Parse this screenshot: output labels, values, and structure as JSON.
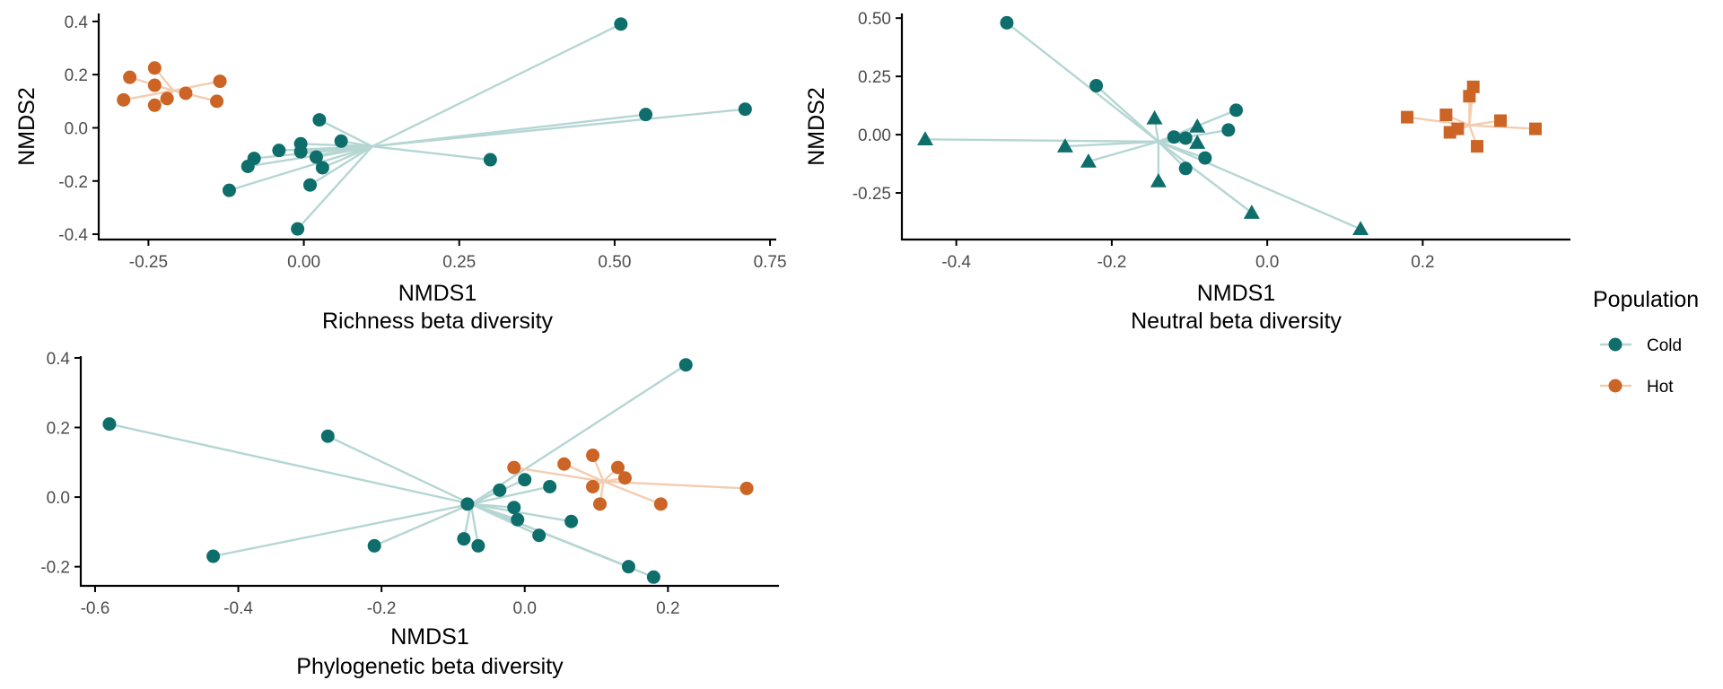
{
  "colors": {
    "Cold": "#0e6e6c",
    "Hot": "#cb6424",
    "Cold_segment": "#b5d6d3",
    "Hot_segment": "#f3cdb0"
  },
  "legend": {
    "title": "Population",
    "entries": [
      {
        "label": "Cold",
        "color": "#0e6e6c"
      },
      {
        "label": "Hot",
        "color": "#cb6424"
      }
    ]
  },
  "chart_data": [
    {
      "type": "scatter",
      "xlabel": "NMDS1",
      "caption": "Richness beta diversity",
      "ylabel": "NMDS2",
      "xlim": [
        -0.33,
        0.76
      ],
      "ylim": [
        -0.42,
        0.43
      ],
      "xticks": [
        -0.25,
        0.0,
        0.25,
        0.5,
        0.75
      ],
      "xtick_labels": [
        "-0.25",
        "0.00",
        "0.25",
        "0.50",
        "0.75"
      ],
      "yticks": [
        -0.4,
        -0.2,
        0.0,
        0.2,
        0.4
      ],
      "ytick_labels": [
        "-0.4",
        "-0.2",
        "0.0",
        "0.2",
        "0.4"
      ],
      "series": [
        {
          "name": "Cold",
          "shape": "circle",
          "centroid": [
            0.11,
            -0.07
          ],
          "points": [
            [
              0.51,
              0.39
            ],
            [
              0.55,
              0.05
            ],
            [
              0.71,
              0.07
            ],
            [
              0.3,
              -0.12
            ],
            [
              0.025,
              0.03
            ],
            [
              0.06,
              -0.05
            ],
            [
              -0.005,
              -0.06
            ],
            [
              -0.005,
              -0.09
            ],
            [
              -0.04,
              -0.085
            ],
            [
              -0.08,
              -0.115
            ],
            [
              -0.09,
              -0.145
            ],
            [
              -0.12,
              -0.235
            ],
            [
              0.02,
              -0.11
            ],
            [
              0.03,
              -0.15
            ],
            [
              0.01,
              -0.215
            ],
            [
              -0.01,
              -0.38
            ]
          ]
        },
        {
          "name": "Hot",
          "shape": "circle",
          "centroid": [
            -0.21,
            0.14
          ],
          "points": [
            [
              -0.28,
              0.19
            ],
            [
              -0.24,
              0.225
            ],
            [
              -0.24,
              0.16
            ],
            [
              -0.22,
              0.11
            ],
            [
              -0.19,
              0.13
            ],
            [
              -0.135,
              0.175
            ],
            [
              -0.29,
              0.105
            ],
            [
              -0.24,
              0.085
            ],
            [
              -0.14,
              0.1
            ]
          ]
        }
      ]
    },
    {
      "type": "scatter",
      "xlabel": "NMDS1",
      "caption": "Neutral beta diversity",
      "ylabel": "NMDS2",
      "xlim": [
        -0.47,
        0.39
      ],
      "ylim": [
        -0.45,
        0.52
      ],
      "xticks": [
        -0.4,
        -0.2,
        0.0,
        0.2
      ],
      "xtick_labels": [
        "-0.4",
        "-0.2",
        "0.0",
        "0.2"
      ],
      "yticks": [
        -0.25,
        0.0,
        0.25,
        0.5
      ],
      "ytick_labels": [
        "-0.25",
        "0.00",
        "0.25",
        "0.50"
      ],
      "series": [
        {
          "name": "Cold",
          "shape": "circle",
          "centroid": [
            -0.14,
            -0.03
          ],
          "points": [
            [
              -0.335,
              0.48
            ],
            [
              -0.22,
              0.21
            ],
            [
              -0.12,
              -0.01
            ],
            [
              -0.105,
              -0.015
            ],
            [
              -0.05,
              0.02
            ],
            [
              -0.04,
              0.105
            ],
            [
              -0.08,
              -0.1
            ],
            [
              -0.105,
              -0.145
            ]
          ]
        },
        {
          "name": "Cold",
          "shape": "triangle",
          "centroid": [
            -0.14,
            -0.03
          ],
          "points": [
            [
              -0.44,
              -0.02
            ],
            [
              -0.26,
              -0.05
            ],
            [
              -0.23,
              -0.115
            ],
            [
              -0.145,
              0.07
            ],
            [
              -0.09,
              0.035
            ],
            [
              -0.09,
              -0.035
            ],
            [
              -0.14,
              -0.2
            ],
            [
              -0.02,
              -0.335
            ],
            [
              0.12,
              -0.405
            ]
          ]
        },
        {
          "name": "Hot",
          "shape": "square",
          "centroid": [
            0.26,
            0.04
          ],
          "points": [
            [
              0.18,
              0.075
            ],
            [
              0.23,
              0.085
            ],
            [
              0.235,
              0.01
            ],
            [
              0.245,
              0.025
            ],
            [
              0.26,
              0.165
            ],
            [
              0.265,
              0.205
            ],
            [
              0.27,
              -0.05
            ],
            [
              0.3,
              0.06
            ],
            [
              0.345,
              0.025
            ]
          ]
        }
      ]
    },
    {
      "type": "scatter",
      "xlabel": "NMDS1",
      "caption": "Phylogenetic beta diversity",
      "ylabel": "",
      "xlim": [
        -0.62,
        0.355
      ],
      "ylim": [
        -0.255,
        0.405
      ],
      "xticks": [
        -0.6,
        -0.4,
        -0.2,
        0.0,
        0.2
      ],
      "xtick_labels": [
        "-0.6",
        "-0.4",
        "-0.2",
        "0.0",
        "0.2"
      ],
      "yticks": [
        -0.2,
        0.0,
        0.2,
        0.4
      ],
      "ytick_labels": [
        "-0.2",
        "0.0",
        "0.2",
        "0.4"
      ],
      "series": [
        {
          "name": "Cold",
          "shape": "circle",
          "centroid": [
            -0.075,
            -0.02
          ],
          "points": [
            [
              -0.58,
              0.21
            ],
            [
              -0.275,
              0.175
            ],
            [
              -0.435,
              -0.17
            ],
            [
              -0.21,
              -0.14
            ],
            [
              -0.085,
              -0.12
            ],
            [
              -0.065,
              -0.14
            ],
            [
              -0.08,
              -0.02
            ],
            [
              -0.035,
              0.02
            ],
            [
              0.0,
              0.05
            ],
            [
              0.035,
              0.03
            ],
            [
              -0.015,
              -0.03
            ],
            [
              -0.01,
              -0.065
            ],
            [
              0.02,
              -0.11
            ],
            [
              0.065,
              -0.07
            ],
            [
              0.145,
              -0.2
            ],
            [
              0.18,
              -0.23
            ],
            [
              0.225,
              0.38
            ]
          ]
        },
        {
          "name": "Hot",
          "shape": "circle",
          "centroid": [
            0.11,
            0.045
          ],
          "points": [
            [
              -0.015,
              0.085
            ],
            [
              0.055,
              0.095
            ],
            [
              0.095,
              0.12
            ],
            [
              0.13,
              0.085
            ],
            [
              0.14,
              0.055
            ],
            [
              0.095,
              0.03
            ],
            [
              0.105,
              -0.02
            ],
            [
              0.19,
              -0.02
            ],
            [
              0.31,
              0.025
            ]
          ]
        }
      ]
    }
  ]
}
